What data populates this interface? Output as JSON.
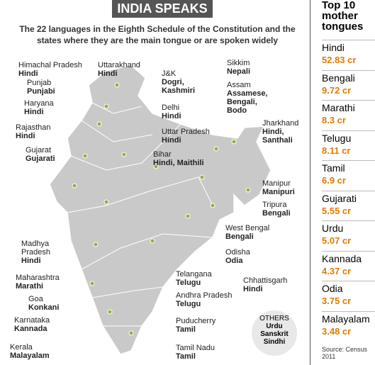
{
  "header": {
    "title": "INDIA SPEAKS",
    "subtitle": "The 22 languages in the Eighth Schedule of the Constitution and the states where they are the main tongue or are spoken widely"
  },
  "states": [
    {
      "state": "Himachal Pradesh",
      "language": "Hindi"
    },
    {
      "state": "Punjab",
      "language": "Punjabi"
    },
    {
      "state": "Haryana",
      "language": "Hindi"
    },
    {
      "state": "Rajasthan",
      "language": "Hindi"
    },
    {
      "state": "Gujarat",
      "language": "Gujarati"
    },
    {
      "state": "Uttarakhand",
      "language": "Hindi"
    },
    {
      "state": "J&K",
      "language": "Dogri, Kashmiri"
    },
    {
      "state": "Delhi",
      "language": "Hindi"
    },
    {
      "state": "Uttar Pradesh",
      "language": "Hindi"
    },
    {
      "state": "Bihar",
      "language": "Hindi, Maithili"
    },
    {
      "state": "Sikkim",
      "language": "Nepali"
    },
    {
      "state": "Assam",
      "language": "Assamese, Bengali, Bodo"
    },
    {
      "state": "Jharkhand",
      "language": "Hindi, Santhali"
    },
    {
      "state": "Manipur",
      "language": "Manipuri"
    },
    {
      "state": "Tripura",
      "language": "Bengali"
    },
    {
      "state": "West Bengal",
      "language": "Bengali"
    },
    {
      "state": "Odisha",
      "language": "Odia"
    },
    {
      "state": "Chhattisgarh",
      "language": "Hindi"
    },
    {
      "state": "Telangana",
      "language": "Telugu"
    },
    {
      "state": "Andhra Pradesh",
      "language": "Telugu"
    },
    {
      "state": "Puducherry",
      "language": "Tamil"
    },
    {
      "state": "Tamil Nadu",
      "language": "Tamil"
    },
    {
      "state": "Madhya Pradesh",
      "language": "Hindi"
    },
    {
      "state": "Maharashtra",
      "language": "Marathi"
    },
    {
      "state": "Goa",
      "language": "Konkani"
    },
    {
      "state": "Karnataka",
      "language": "Kannada"
    },
    {
      "state": "Kerala",
      "language": "Malayalam"
    }
  ],
  "others": {
    "title": "OTHERS",
    "languages": [
      "Urdu",
      "Sanskrit",
      "Sindhi"
    ]
  },
  "sidebar": {
    "title": "Top 10 mother tongues",
    "items": [
      {
        "name": "Hindi",
        "value": "52.83 cr"
      },
      {
        "name": "Bengali",
        "value": "9.72 cr"
      },
      {
        "name": "Marathi",
        "value": "8.3 cr"
      },
      {
        "name": "Telugu",
        "value": "8.11 cr"
      },
      {
        "name": "Tamil",
        "value": "6.9 cr"
      },
      {
        "name": "Gujarati",
        "value": "5.55 cr"
      },
      {
        "name": "Urdu",
        "value": "5.07 cr"
      },
      {
        "name": "Kannada",
        "value": "4.37 cr"
      },
      {
        "name": "Odia",
        "value": "3.75 cr"
      },
      {
        "name": "Malayalam",
        "value": "3.48 cr"
      }
    ],
    "source": "Source: Census 2011"
  }
}
